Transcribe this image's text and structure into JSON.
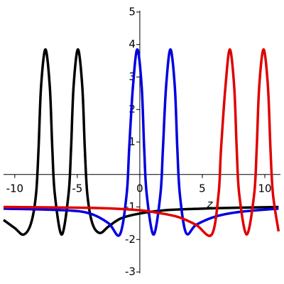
{
  "chart_data": {
    "type": "line",
    "xlabel": "z",
    "xlim": [
      -10.9,
      11.25
    ],
    "ylim": [
      -3.37,
      5.37
    ],
    "xticks": [
      -10,
      -5,
      0,
      5,
      10
    ],
    "yticks": [
      -3,
      -2,
      -1,
      1,
      2,
      3,
      4,
      5
    ],
    "series": [
      {
        "color": "#000000",
        "x": [
          -10.9,
          -10,
          -9.3,
          -8.7,
          -8.3,
          -8.1,
          -7.9,
          -7.55,
          -7.2,
          -7.0,
          -6.8,
          -6.25,
          -5.7,
          -5.5,
          -5.3,
          -4.95,
          -4.6,
          -4.4,
          -4.2,
          -3.8,
          -3.2,
          -2.5,
          -1.5,
          0,
          2,
          5,
          8,
          11.1
        ],
        "values": [
          -1.4,
          -1.65,
          -1.85,
          -1.5,
          -0.6,
          0.8,
          2.7,
          3.85,
          2.7,
          0.8,
          -0.6,
          -1.85,
          -0.6,
          0.8,
          2.7,
          3.85,
          2.7,
          0.8,
          -0.6,
          -1.5,
          -1.8,
          -1.6,
          -1.35,
          -1.2,
          -1.1,
          -1.05,
          -1.02,
          -1.0
        ]
      },
      {
        "color": "#0000e0",
        "x": [
          -10.9,
          -6,
          -4,
          -2.5,
          -1.6,
          -1.05,
          -0.85,
          -0.55,
          -0.2,
          0.15,
          0.35,
          0.55,
          1.1,
          1.65,
          1.85,
          2.1,
          2.45,
          2.8,
          3.0,
          3.2,
          3.7,
          4.5,
          6,
          8,
          11.1
        ],
        "values": [
          -1.05,
          -1.1,
          -1.2,
          -1.5,
          -1.85,
          -0.6,
          0.8,
          2.7,
          3.85,
          2.7,
          0.8,
          -0.6,
          -1.85,
          -0.6,
          0.8,
          2.7,
          3.85,
          2.7,
          0.8,
          -0.6,
          -1.8,
          -1.55,
          -1.3,
          -1.15,
          -1.05
        ]
      },
      {
        "color": "#e00000",
        "x": [
          -10.9,
          -5,
          -2,
          0,
          1,
          3,
          4.5,
          5.75,
          6.3,
          6.5,
          6.85,
          7.2,
          7.55,
          7.75,
          7.95,
          8.55,
          9.15,
          9.35,
          9.55,
          9.9,
          10.25,
          10.45,
          10.65,
          11.1
        ],
        "values": [
          -1.0,
          -1.02,
          -1.05,
          -1.1,
          -1.15,
          -1.3,
          -1.55,
          -1.85,
          -0.6,
          0.8,
          2.7,
          3.85,
          2.7,
          0.8,
          -0.6,
          -1.85,
          -0.6,
          0.8,
          2.7,
          3.85,
          2.7,
          0.8,
          -0.6,
          -1.75
        ]
      }
    ]
  }
}
